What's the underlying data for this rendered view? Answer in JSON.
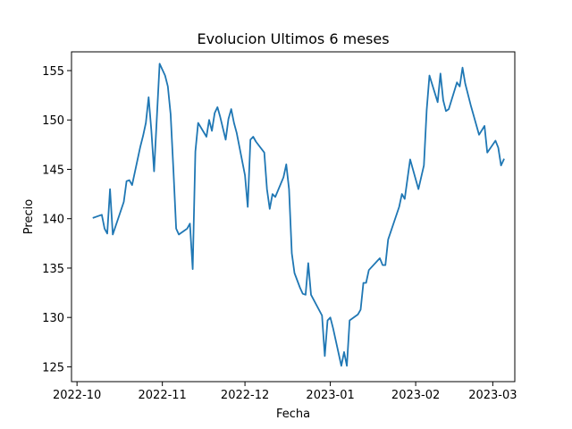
{
  "chart_data": {
    "type": "line",
    "title": "Evolucion Ultimos 6 meses",
    "xlabel": "Fecha",
    "ylabel": "Precio",
    "x_ticks": [
      "2022-10",
      "2022-11",
      "2022-12",
      "2023-01",
      "2023-02",
      "2023-03"
    ],
    "y_ticks": [
      125,
      130,
      135,
      140,
      145,
      150,
      155
    ],
    "xlim": [
      "2022-09-29",
      "2023-03-09"
    ],
    "ylim": [
      123.5,
      156.9
    ],
    "grid": false,
    "series": [
      {
        "color": "#1f77b4",
        "points": [
          [
            "2022-10-07",
            140.1
          ],
          [
            "2022-10-10",
            140.4
          ],
          [
            "2022-10-11",
            139.0
          ],
          [
            "2022-10-12",
            138.5
          ],
          [
            "2022-10-13",
            143.0
          ],
          [
            "2022-10-14",
            138.4
          ],
          [
            "2022-10-18",
            141.7
          ],
          [
            "2022-10-19",
            143.8
          ],
          [
            "2022-10-20",
            143.9
          ],
          [
            "2022-10-21",
            143.4
          ],
          [
            "2022-10-24",
            147.3
          ],
          [
            "2022-10-25",
            148.4
          ],
          [
            "2022-10-26",
            149.7
          ],
          [
            "2022-10-27",
            152.3
          ],
          [
            "2022-10-28",
            149.0
          ],
          [
            "2022-10-29",
            144.8
          ],
          [
            "2022-10-31",
            155.7
          ],
          [
            "2022-11-02",
            154.5
          ],
          [
            "2022-11-03",
            153.4
          ],
          [
            "2022-11-04",
            150.6
          ],
          [
            "2022-11-05",
            145.0
          ],
          [
            "2022-11-06",
            139.0
          ],
          [
            "2022-11-07",
            138.4
          ],
          [
            "2022-11-09",
            138.8
          ],
          [
            "2022-11-10",
            139.0
          ],
          [
            "2022-11-11",
            139.5
          ],
          [
            "2022-11-12",
            134.9
          ],
          [
            "2022-11-13",
            146.8
          ],
          [
            "2022-11-14",
            149.7
          ],
          [
            "2022-11-17",
            148.3
          ],
          [
            "2022-11-18",
            150.0
          ],
          [
            "2022-11-19",
            148.9
          ],
          [
            "2022-11-20",
            150.7
          ],
          [
            "2022-11-21",
            151.3
          ],
          [
            "2022-11-22",
            150.3
          ],
          [
            "2022-11-24",
            148.0
          ],
          [
            "2022-11-25",
            150.1
          ],
          [
            "2022-11-26",
            151.1
          ],
          [
            "2022-11-27",
            149.7
          ],
          [
            "2022-11-28",
            148.7
          ],
          [
            "2022-12-01",
            144.4
          ],
          [
            "2022-12-02",
            141.2
          ],
          [
            "2022-12-03",
            148.0
          ],
          [
            "2022-12-04",
            148.3
          ],
          [
            "2022-12-05",
            147.8
          ],
          [
            "2022-12-08",
            146.7
          ],
          [
            "2022-12-09",
            143.0
          ],
          [
            "2022-12-10",
            141.0
          ],
          [
            "2022-12-11",
            142.5
          ],
          [
            "2022-12-12",
            142.2
          ],
          [
            "2022-12-15",
            144.2
          ],
          [
            "2022-12-16",
            145.5
          ],
          [
            "2022-12-17",
            143.0
          ],
          [
            "2022-12-18",
            136.5
          ],
          [
            "2022-12-19",
            134.5
          ],
          [
            "2022-12-21",
            133.0
          ],
          [
            "2022-12-22",
            132.4
          ],
          [
            "2022-12-23",
            132.3
          ],
          [
            "2022-12-24",
            135.5
          ],
          [
            "2022-12-25",
            132.3
          ],
          [
            "2022-12-29",
            130.2
          ],
          [
            "2022-12-30",
            126.1
          ],
          [
            "2022-12-31",
            129.7
          ],
          [
            "2023-01-01",
            130.0
          ],
          [
            "2023-01-02",
            128.9
          ],
          [
            "2023-01-05",
            125.1
          ],
          [
            "2023-01-06",
            126.5
          ],
          [
            "2023-01-07",
            125.1
          ],
          [
            "2023-01-08",
            129.7
          ],
          [
            "2023-01-11",
            130.3
          ],
          [
            "2023-01-12",
            130.8
          ],
          [
            "2023-01-13",
            133.5
          ],
          [
            "2023-01-14",
            133.5
          ],
          [
            "2023-01-15",
            134.8
          ],
          [
            "2023-01-19",
            136.0
          ],
          [
            "2023-01-20",
            135.3
          ],
          [
            "2023-01-21",
            135.3
          ],
          [
            "2023-01-22",
            137.9
          ],
          [
            "2023-01-26",
            141.2
          ],
          [
            "2023-01-27",
            142.5
          ],
          [
            "2023-01-28",
            142.0
          ],
          [
            "2023-01-30",
            146.0
          ],
          [
            "2023-02-02",
            143.0
          ],
          [
            "2023-02-04",
            145.4
          ],
          [
            "2023-02-05",
            151.0
          ],
          [
            "2023-02-06",
            154.5
          ],
          [
            "2023-02-09",
            151.8
          ],
          [
            "2023-02-10",
            154.7
          ],
          [
            "2023-02-11",
            152.0
          ],
          [
            "2023-02-12",
            150.9
          ],
          [
            "2023-02-13",
            151.1
          ],
          [
            "2023-02-16",
            153.8
          ],
          [
            "2023-02-17",
            153.4
          ],
          [
            "2023-02-18",
            155.3
          ],
          [
            "2023-02-19",
            153.7
          ],
          [
            "2023-02-21",
            151.5
          ],
          [
            "2023-02-24",
            148.5
          ],
          [
            "2023-02-26",
            149.4
          ],
          [
            "2023-02-27",
            146.7
          ],
          [
            "2023-03-02",
            147.9
          ],
          [
            "2023-03-03",
            147.2
          ],
          [
            "2023-03-04",
            145.4
          ],
          [
            "2023-03-05",
            146.0
          ]
        ]
      }
    ]
  }
}
